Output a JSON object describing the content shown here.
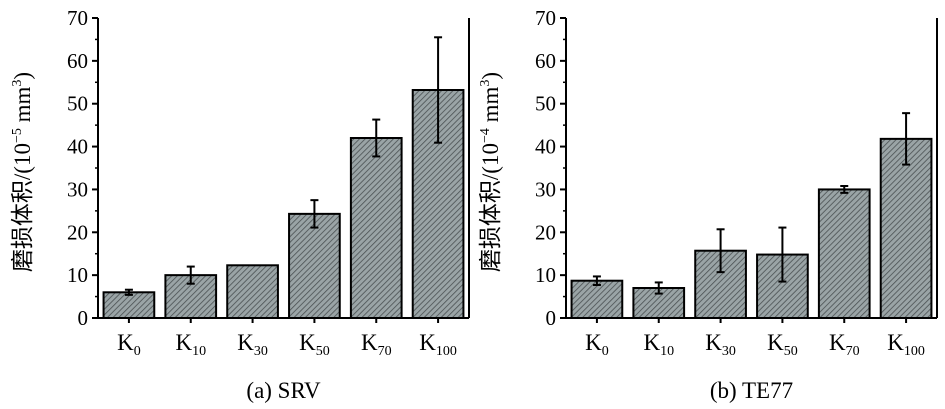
{
  "chart_data": [
    {
      "type": "bar",
      "caption": "(a) SRV",
      "ylabel": {
        "prefix": "磨损体积/(10",
        "exp": "−5",
        "unit": " mm",
        "unit_exp": "3",
        "close": ")"
      },
      "categories": [
        {
          "base": "K",
          "sub": "0"
        },
        {
          "base": "K",
          "sub": "10"
        },
        {
          "base": "K",
          "sub": "30"
        },
        {
          "base": "K",
          "sub": "50"
        },
        {
          "base": "K",
          "sub": "70"
        },
        {
          "base": "K",
          "sub": "100"
        }
      ],
      "values": [
        6,
        10,
        12.3,
        24.3,
        42,
        53.2
      ],
      "errors": [
        0.6,
        2,
        0,
        3.2,
        4.3,
        12.3
      ],
      "ylim": [
        0,
        70
      ],
      "yticks": [
        0,
        10,
        20,
        30,
        40,
        50,
        60,
        70
      ],
      "bar_fill": "#9aa4a6",
      "hatch_color": "#4a5052"
    },
    {
      "type": "bar",
      "caption": "(b) TE77",
      "ylabel": {
        "prefix": "磨损体积/(10",
        "exp": "−4",
        "unit": " mm",
        "unit_exp": "3",
        "close": ")"
      },
      "categories": [
        {
          "base": "K",
          "sub": "0"
        },
        {
          "base": "K",
          "sub": "10"
        },
        {
          "base": "K",
          "sub": "30"
        },
        {
          "base": "K",
          "sub": "50"
        },
        {
          "base": "K",
          "sub": "70"
        },
        {
          "base": "K",
          "sub": "100"
        }
      ],
      "values": [
        8.7,
        7,
        15.7,
        14.8,
        30,
        41.8
      ],
      "errors": [
        1,
        1.3,
        5,
        6.3,
        0.8,
        6
      ],
      "ylim": [
        0,
        70
      ],
      "yticks": [
        0,
        10,
        20,
        30,
        40,
        50,
        60,
        70
      ],
      "bar_fill": "#9aa4a6",
      "hatch_color": "#4a5052"
    }
  ]
}
